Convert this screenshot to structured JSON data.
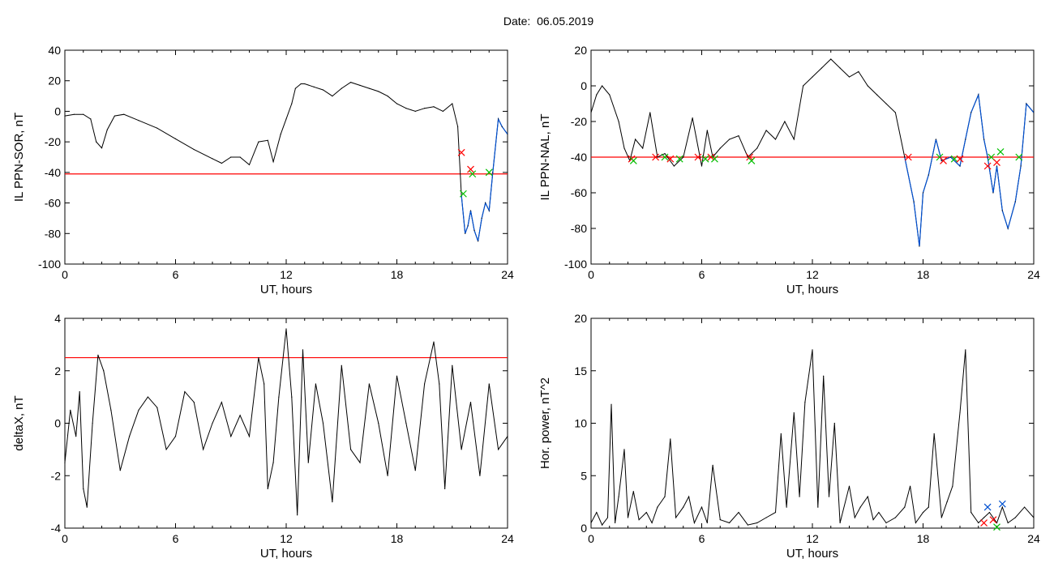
{
  "header": {
    "date_label": "Date:",
    "date_value": "06.05.2019"
  },
  "colors": {
    "trace": "#000000",
    "threshold": "#ff0000",
    "highlight": "#0050d0",
    "marker_red": "#ff0000",
    "marker_green": "#00c000",
    "marker_blue": "#0050d0"
  },
  "chart_data": [
    {
      "type": "line",
      "xlabel": "UT, hours",
      "ylabel": "IL PPN-SOR, nT",
      "xlim": [
        0,
        24
      ],
      "ylim": [
        -100,
        40
      ],
      "xticks": [
        0,
        6,
        12,
        18,
        24
      ],
      "yticks": [
        40,
        20,
        0,
        -20,
        -40,
        -60,
        -80,
        -100
      ],
      "threshold": -41,
      "series": [
        {
          "x": [
            0,
            0.5,
            1,
            1.4,
            1.7,
            2.0,
            2.3,
            2.7,
            3.2,
            4,
            5,
            6,
            7,
            8,
            8.5,
            9,
            9.5,
            10,
            10.5,
            11,
            11.3,
            11.7,
            12,
            12.3,
            12.5,
            12.8,
            13,
            13.5,
            14,
            14.5,
            15,
            15.5,
            16,
            16.5,
            17,
            17.5,
            18,
            18.5,
            19,
            19.5,
            20,
            20.5,
            21,
            21.3,
            21.5,
            21.7,
            21.85,
            22,
            22.2,
            22.4,
            22.6,
            22.8,
            23,
            23.2,
            23.5,
            23.7,
            24
          ],
          "y": [
            -3,
            -2,
            -2,
            -5,
            -20,
            -24,
            -12,
            -3,
            -2,
            -6,
            -11,
            -18,
            -25,
            -31,
            -34,
            -30,
            -30,
            -35,
            -20,
            -19,
            -33,
            -15,
            -5,
            5,
            15,
            18,
            18,
            16,
            14,
            10,
            15,
            19,
            17,
            15,
            13,
            10,
            5,
            2,
            0,
            2,
            3,
            0,
            5,
            -10,
            -55,
            -80,
            -75,
            -65,
            -78,
            -85,
            -70,
            -60,
            -65,
            -40,
            -5,
            -10,
            -15
          ],
          "highlight_from": 21.4
        }
      ],
      "markers": [
        {
          "x": 21.5,
          "y": -27,
          "color": "red"
        },
        {
          "x": 21.6,
          "y": -54,
          "color": "green"
        },
        {
          "x": 22.0,
          "y": -38,
          "color": "red"
        },
        {
          "x": 22.1,
          "y": -41,
          "color": "green"
        },
        {
          "x": 23.0,
          "y": -40,
          "color": "green"
        }
      ]
    },
    {
      "type": "line",
      "xlabel": "UT, hours",
      "ylabel": "IL PPN-NAL, nT",
      "xlim": [
        0,
        24
      ],
      "ylim": [
        -100,
        20
      ],
      "xticks": [
        0,
        6,
        12,
        18,
        24
      ],
      "yticks": [
        20,
        0,
        -20,
        -40,
        -60,
        -80,
        -100
      ],
      "threshold": -40,
      "series": [
        {
          "x": [
            0,
            0.3,
            0.6,
            1,
            1.5,
            1.8,
            2.1,
            2.4,
            2.8,
            3.2,
            3.6,
            4,
            4.5,
            5,
            5.5,
            6,
            6.3,
            6.6,
            7,
            7.5,
            8,
            8.5,
            9,
            9.5,
            10,
            10.5,
            11,
            11.5,
            12,
            12.5,
            13,
            13.5,
            14,
            14.5,
            15,
            15.5,
            16,
            16.5,
            17,
            17.5,
            17.8,
            18,
            18.3,
            18.7,
            19,
            19.5,
            20,
            20.3,
            20.6,
            21,
            21.3,
            21.5,
            21.8,
            22,
            22.3,
            22.6,
            23,
            23.3,
            23.6,
            24
          ],
          "y": [
            -15,
            -5,
            0,
            -5,
            -20,
            -35,
            -42,
            -30,
            -35,
            -15,
            -40,
            -38,
            -45,
            -40,
            -18,
            -45,
            -25,
            -40,
            -35,
            -30,
            -28,
            -40,
            -35,
            -25,
            -30,
            -20,
            -30,
            0,
            5,
            10,
            15,
            10,
            5,
            8,
            0,
            -5,
            -10,
            -15,
            -40,
            -65,
            -90,
            -60,
            -50,
            -30,
            -42,
            -40,
            -45,
            -30,
            -15,
            -5,
            -30,
            -40,
            -60,
            -45,
            -70,
            -80,
            -65,
            -45,
            -10,
            -15
          ],
          "highlight_from": 17.0
        }
      ],
      "markers": [
        {
          "x": 2.2,
          "y": -41,
          "color": "red"
        },
        {
          "x": 2.3,
          "y": -42,
          "color": "green"
        },
        {
          "x": 3.5,
          "y": -40,
          "color": "red"
        },
        {
          "x": 4.0,
          "y": -40,
          "color": "green"
        },
        {
          "x": 4.3,
          "y": -41,
          "color": "red"
        },
        {
          "x": 4.8,
          "y": -41,
          "color": "green"
        },
        {
          "x": 5.8,
          "y": -40,
          "color": "red"
        },
        {
          "x": 6.2,
          "y": -41,
          "color": "green"
        },
        {
          "x": 6.5,
          "y": -40,
          "color": "red"
        },
        {
          "x": 6.7,
          "y": -41,
          "color": "green"
        },
        {
          "x": 8.6,
          "y": -40,
          "color": "red"
        },
        {
          "x": 8.7,
          "y": -42,
          "color": "green"
        },
        {
          "x": 17.2,
          "y": -40,
          "color": "red"
        },
        {
          "x": 18.9,
          "y": -40,
          "color": "green"
        },
        {
          "x": 19.1,
          "y": -42,
          "color": "red"
        },
        {
          "x": 19.7,
          "y": -41,
          "color": "green"
        },
        {
          "x": 20.0,
          "y": -41,
          "color": "red"
        },
        {
          "x": 21.5,
          "y": -45,
          "color": "red"
        },
        {
          "x": 21.7,
          "y": -40,
          "color": "green"
        },
        {
          "x": 22.0,
          "y": -43,
          "color": "red"
        },
        {
          "x": 22.2,
          "y": -37,
          "color": "green"
        },
        {
          "x": 23.2,
          "y": -40,
          "color": "green"
        }
      ]
    },
    {
      "type": "line",
      "xlabel": "UT, hours",
      "ylabel": "deltaX, nT",
      "xlim": [
        0,
        24
      ],
      "ylim": [
        -4,
        4
      ],
      "xticks": [
        0,
        6,
        12,
        18,
        24
      ],
      "yticks": [
        4,
        2,
        0,
        -2,
        -4
      ],
      "threshold": 2.5,
      "series": [
        {
          "x": [
            0,
            0.3,
            0.6,
            0.8,
            1,
            1.2,
            1.5,
            1.8,
            2.1,
            2.5,
            3,
            3.5,
            4,
            4.5,
            5,
            5.5,
            6,
            6.5,
            7,
            7.5,
            8,
            8.5,
            9,
            9.5,
            10,
            10.5,
            10.8,
            11,
            11.3,
            11.6,
            12,
            12.3,
            12.6,
            12.9,
            13.2,
            13.6,
            14,
            14.5,
            15,
            15.5,
            16,
            16.5,
            17,
            17.5,
            18,
            18.5,
            19,
            19.5,
            20,
            20.3,
            20.6,
            21,
            21.5,
            22,
            22.5,
            23,
            23.5,
            24
          ],
          "y": [
            -1.5,
            0.5,
            -0.5,
            1.2,
            -2.5,
            -3.2,
            0,
            2.6,
            2,
            0.5,
            -1.8,
            -0.5,
            0.5,
            1,
            0.6,
            -1,
            -0.5,
            1.2,
            0.8,
            -1,
            0,
            0.8,
            -0.5,
            0.3,
            -0.5,
            2.5,
            1.5,
            -2.5,
            -1.5,
            1,
            3.6,
            1,
            -3.5,
            2.8,
            -1.5,
            1.5,
            0,
            -3,
            2.2,
            -1,
            -1.5,
            1.5,
            0,
            -2,
            1.8,
            0,
            -1.8,
            1.5,
            3.1,
            1.5,
            -2.5,
            2.2,
            -1,
            0.8,
            -2,
            1.5,
            -1,
            -0.5
          ]
        }
      ]
    },
    {
      "type": "line",
      "xlabel": "UT, hours",
      "ylabel": "Hor. power, nT^2",
      "xlim": [
        0,
        24
      ],
      "ylim": [
        0,
        20
      ],
      "xticks": [
        0,
        6,
        12,
        18,
        24
      ],
      "yticks": [
        20,
        15,
        10,
        5,
        0
      ],
      "series": [
        {
          "x": [
            0,
            0.3,
            0.6,
            0.9,
            1.1,
            1.3,
            1.5,
            1.8,
            2,
            2.3,
            2.6,
            3,
            3.3,
            3.6,
            4,
            4.3,
            4.6,
            5,
            5.3,
            5.6,
            6,
            6.3,
            6.6,
            7,
            7.5,
            8,
            8.5,
            9,
            9.5,
            10,
            10.3,
            10.6,
            11,
            11.3,
            11.6,
            12,
            12.3,
            12.6,
            12.9,
            13.2,
            13.5,
            14,
            14.3,
            14.6,
            15,
            15.3,
            15.6,
            16,
            16.5,
            17,
            17.3,
            17.6,
            18,
            18.3,
            18.6,
            19,
            19.3,
            19.6,
            20,
            20.3,
            20.6,
            21,
            21.3,
            21.6,
            22,
            22.3,
            22.6,
            23,
            23.5,
            24
          ],
          "y": [
            0.5,
            1.5,
            0.3,
            1,
            11.8,
            0.5,
            3,
            7.5,
            1,
            3.5,
            0.8,
            1.5,
            0.5,
            2,
            3,
            8.5,
            1,
            2,
            3,
            0.5,
            2,
            0.5,
            6,
            0.8,
            0.5,
            1.5,
            0.3,
            0.5,
            1,
            1.5,
            9,
            2,
            11,
            3,
            12,
            17,
            2,
            14.5,
            3,
            10,
            0.5,
            4,
            1,
            2,
            3,
            0.8,
            1.5,
            0.5,
            1,
            2,
            4,
            0.5,
            1.5,
            2,
            9,
            1,
            2.5,
            4,
            11,
            17,
            1.5,
            0.5,
            1,
            1.5,
            0.5,
            2,
            0.5,
            1,
            2,
            1
          ]
        }
      ],
      "markers": [
        {
          "x": 21.3,
          "y": 0.5,
          "color": "red"
        },
        {
          "x": 21.5,
          "y": 2.0,
          "color": "blue"
        },
        {
          "x": 21.8,
          "y": 0.8,
          "color": "red"
        },
        {
          "x": 22.0,
          "y": 0.1,
          "color": "green"
        },
        {
          "x": 22.3,
          "y": 2.3,
          "color": "blue"
        }
      ]
    }
  ]
}
